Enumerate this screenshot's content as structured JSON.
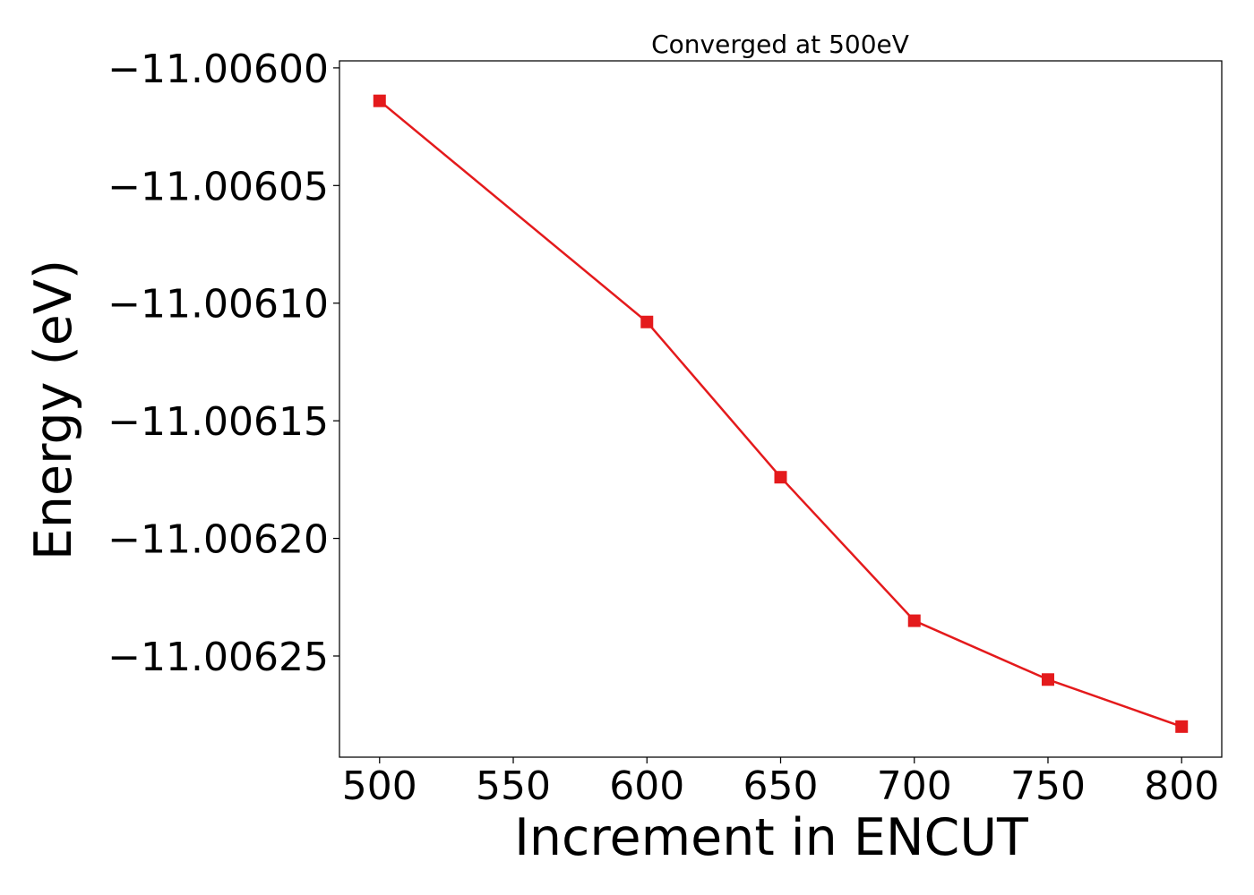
{
  "chart_data": {
    "type": "line",
    "title": "Converged at 500eV",
    "xlabel": "Increment in ENCUT",
    "ylabel": "Energy (eV)",
    "x": [
      500,
      600,
      650,
      700,
      750,
      800
    ],
    "series": [
      {
        "values": [
          -11.006014,
          -11.006108,
          -11.006174,
          -11.006235,
          -11.00626,
          -11.00628
        ],
        "color": "#e41a1c",
        "marker": "square"
      }
    ],
    "xticks": [
      500,
      550,
      600,
      650,
      700,
      750,
      800
    ],
    "xtick_labels": [
      "500",
      "550",
      "600",
      "650",
      "700",
      "750",
      "800"
    ],
    "yticks": [
      -11.006,
      -11.00605,
      -11.0061,
      -11.00615,
      -11.0062,
      -11.00625
    ],
    "ytick_labels": [
      "−11.00600",
      "−11.00605",
      "−11.00610",
      "−11.00615",
      "−11.00620",
      "−11.00625"
    ],
    "xlim": [
      485,
      815
    ],
    "ylim": [
      -11.006293,
      -11.005997
    ],
    "grid": false,
    "legend": "none"
  }
}
